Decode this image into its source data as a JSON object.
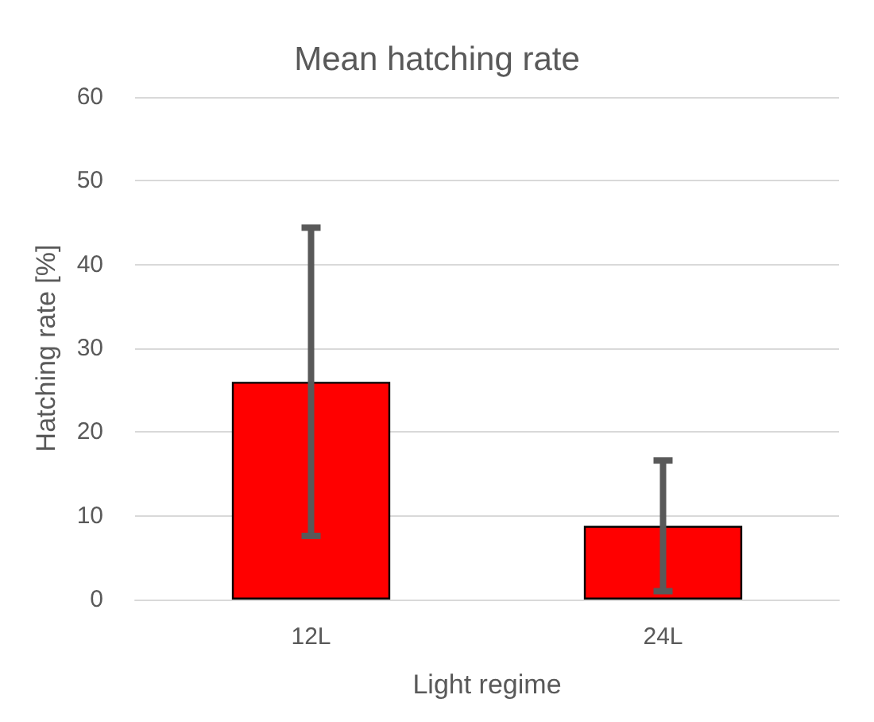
{
  "chart_data": {
    "type": "bar",
    "title": "Mean hatching rate",
    "xlabel": "Light regime",
    "ylabel": "Hatching rate [%]",
    "categories": [
      "12L",
      "24L"
    ],
    "values": [
      26.0,
      8.8
    ],
    "errors": [
      18.4,
      7.8
    ],
    "color": "#ff0000",
    "ylim": [
      0,
      60
    ],
    "yticks": [
      0,
      10,
      20,
      30,
      40,
      50,
      60
    ],
    "grid": "y"
  }
}
